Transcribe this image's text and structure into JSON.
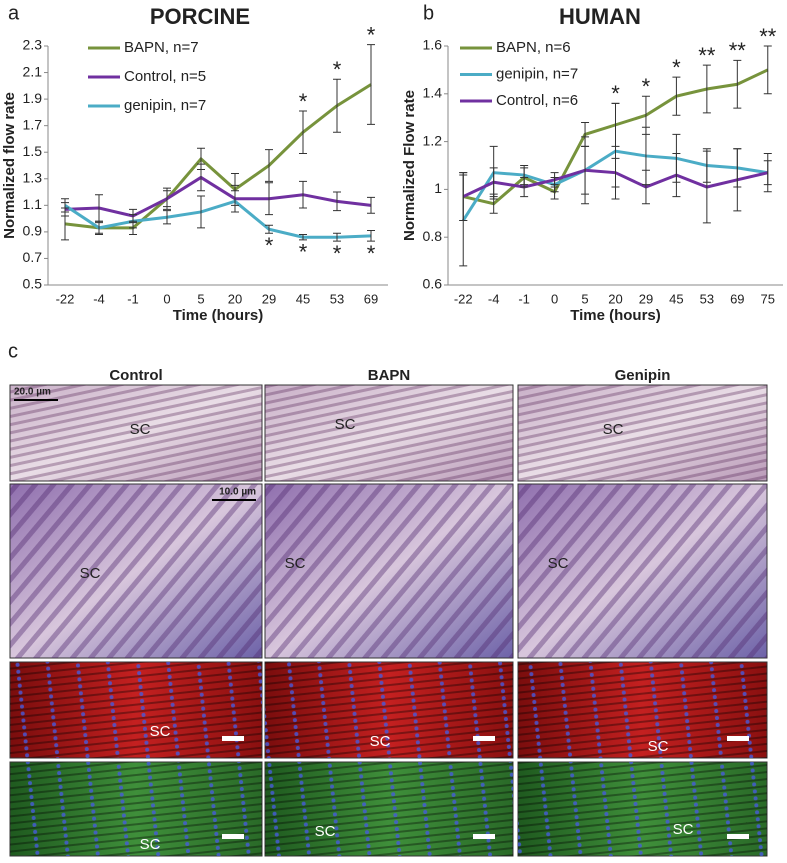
{
  "chart_data": [
    {
      "type": "line",
      "panel_label": "a",
      "title": "PORCINE",
      "x_label": "Time (hours)",
      "y_label": "Normalized flow rate",
      "categories": [
        "-22",
        "-4",
        "-1",
        "0",
        "5",
        "20",
        "29",
        "45",
        "53",
        "69"
      ],
      "ylim": [
        0.5,
        2.3
      ],
      "yticks": [
        0.5,
        0.7,
        0.9,
        1.1,
        1.3,
        1.5,
        1.7,
        1.9,
        2.1,
        2.3
      ],
      "grid": false,
      "series": [
        {
          "name": "BAPN, n=7",
          "color": "#77933c",
          "values": [
            0.96,
            0.93,
            0.93,
            1.15,
            1.45,
            1.22,
            1.4,
            1.65,
            1.85,
            2.01
          ],
          "errors": [
            0.12,
            0.05,
            0.05,
            0.08,
            0.08,
            0.12,
            0.12,
            0.16,
            0.2,
            0.3
          ],
          "significance_position": "above",
          "significance_labels": [
            null,
            null,
            null,
            null,
            null,
            null,
            null,
            "*",
            "*",
            "*"
          ]
        },
        {
          "name": "Control, n=5",
          "color": "#7030a0",
          "values": [
            1.07,
            1.08,
            1.02,
            1.15,
            1.31,
            1.15,
            1.15,
            1.18,
            1.13,
            1.1
          ],
          "errors": [
            0.05,
            0.1,
            0.05,
            0.06,
            0.1,
            0.1,
            0.12,
            0.1,
            0.07,
            0.06
          ]
        },
        {
          "name": "genipin, n=7",
          "color": "#4bacc6",
          "values": [
            1.1,
            0.93,
            0.98,
            1.01,
            1.05,
            1.13,
            0.92,
            0.86,
            0.86,
            0.87
          ],
          "errors": [
            0.05,
            0.04,
            0.05,
            0.05,
            0.12,
            0.08,
            0.03,
            0.02,
            0.03,
            0.04
          ],
          "significance_position": "below",
          "significance_labels": [
            null,
            null,
            null,
            null,
            null,
            null,
            "*",
            "*",
            "*",
            "*"
          ]
        }
      ]
    },
    {
      "type": "line",
      "panel_label": "b",
      "title": "HUMAN",
      "x_label": "Time (hours)",
      "y_label": "Normalized Flow rate",
      "categories": [
        "-22",
        "-4",
        "-1",
        "0",
        "5",
        "20",
        "29",
        "45",
        "53",
        "69",
        "75"
      ],
      "ylim": [
        0.6,
        1.6
      ],
      "yticks": [
        0.6,
        0.8,
        1.0,
        1.2,
        1.4,
        1.6
      ],
      "grid": false,
      "series": [
        {
          "name": "BAPN, n=6",
          "color": "#77933c",
          "values": [
            0.97,
            0.94,
            1.05,
            0.99,
            1.23,
            1.27,
            1.31,
            1.39,
            1.42,
            1.44,
            1.5
          ],
          "errors": [
            0.1,
            0.04,
            0.04,
            0.03,
            0.05,
            0.09,
            0.08,
            0.08,
            0.1,
            0.1,
            0.1
          ],
          "significance_position": "above",
          "significance_labels": [
            null,
            null,
            null,
            null,
            null,
            "*",
            "*",
            "*",
            "**",
            "**",
            "**"
          ]
        },
        {
          "name": "genipin, n=7",
          "color": "#4bacc6",
          "values": [
            0.87,
            1.07,
            1.06,
            1.02,
            1.08,
            1.16,
            1.14,
            1.13,
            1.1,
            1.09,
            1.07
          ],
          "errors": [
            0.19,
            0.11,
            0.04,
            0.03,
            0.14,
            0.2,
            0.12,
            0.1,
            0.07,
            0.08,
            0.08
          ]
        },
        {
          "name": "Control, n=6",
          "color": "#7030a0",
          "values": [
            0.97,
            1.03,
            1.01,
            1.04,
            1.08,
            1.07,
            1.01,
            1.06,
            1.01,
            1.04,
            1.07
          ],
          "errors": [
            0.1,
            0.06,
            0.04,
            0.03,
            0.1,
            0.06,
            0.07,
            0.09,
            0.15,
            0.13,
            0.05
          ]
        }
      ]
    }
  ],
  "figure_c": {
    "panel_label": "c",
    "columns": [
      "Control",
      "BAPN",
      "Genipin"
    ],
    "scale_labels": [
      "20.0 µm",
      "10.0 µm"
    ],
    "region_label": "SC"
  }
}
